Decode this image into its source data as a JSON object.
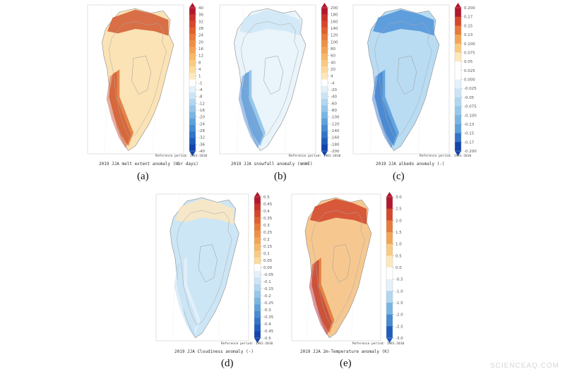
{
  "watermark": "SCIENCEAQ.COM",
  "reference_note": "Reference period: 1981-2010",
  "chart_data": [
    {
      "type": "heatmap",
      "panel_label": "(a)",
      "title": "2019 JJA melt extent anomaly (Nbr days)",
      "colorbar": {
        "ticks": [
          "40",
          "36",
          "32",
          "28",
          "24",
          "20",
          "16",
          "12",
          "8",
          "4",
          "1",
          "-1",
          "-4",
          "-8",
          "-12",
          "-16",
          "-20",
          "-24",
          "-28",
          "-32",
          "-36",
          "-40"
        ],
        "colors": [
          "#b2182b",
          "#c8322b",
          "#d6472c",
          "#e0602f",
          "#e87a3b",
          "#ee9047",
          "#f2a455",
          "#f6b86a",
          "#f9ca82",
          "#fbdb9e",
          "#fde8bd",
          "#ffffff",
          "#e4f1fa",
          "#cce5f5",
          "#b1d6ef",
          "#96c6e9",
          "#7ab5e2",
          "#5fa1da",
          "#478bd1",
          "#3374c7",
          "#205cbc",
          "#1244ae"
        ]
      },
      "map_fill": {
        "interior": "#fbe3b5",
        "coast": "#e07a3e",
        "coast_dark": "#c8442c",
        "northwest": "#d25a32"
      }
    },
    {
      "type": "heatmap",
      "panel_label": "(b)",
      "title": "2019 JJA snowfall anomaly (mmWE)",
      "colorbar": {
        "ticks": [
          "200",
          "180",
          "160",
          "140",
          "120",
          "100",
          "80",
          "60",
          "40",
          "20",
          "4",
          "-4",
          "-20",
          "-40",
          "-60",
          "-80",
          "-100",
          "-120",
          "-140",
          "-160",
          "-180",
          "-200"
        ],
        "colors": [
          "#b2182b",
          "#c8322b",
          "#d6472c",
          "#e0602f",
          "#e87a3b",
          "#ee9047",
          "#f2a455",
          "#f6b86a",
          "#f9ca82",
          "#fbdb9e",
          "#fde8bd",
          "#ffffff",
          "#e4f1fa",
          "#cce5f5",
          "#b1d6ef",
          "#96c6e9",
          "#7ab5e2",
          "#5fa1da",
          "#478bd1",
          "#3374c7",
          "#205cbc",
          "#1244ae"
        ]
      },
      "map_fill": {
        "interior": "#eaf4fb",
        "coast": "#8fc2e8",
        "coast_dark": "#3f7fcf",
        "northwest": "#cfe6f6"
      }
    },
    {
      "type": "heatmap",
      "panel_label": "(c)",
      "title": "2019 JJA albedo anomaly (-)",
      "colorbar": {
        "ticks": [
          "0.200",
          "0.17",
          "0.15",
          "0.13",
          "0.100",
          "0.075",
          "0.05",
          "0.025",
          "0.000",
          "-0.025",
          "-0.05",
          "-0.075",
          "-0.100",
          "-0.13",
          "-0.15",
          "-0.17",
          "-0.200"
        ],
        "colors": [
          "#b2182b",
          "#d6472c",
          "#e87a3b",
          "#f2a455",
          "#f9ca82",
          "#fde8bd",
          "#ffffff",
          "#ffffff",
          "#e4f1fa",
          "#cce5f5",
          "#b1d6ef",
          "#96c6e9",
          "#7ab5e2",
          "#5fa1da",
          "#3374c7",
          "#1244ae"
        ]
      },
      "map_fill": {
        "interior": "#b9dcf3",
        "coast": "#5b9ddb",
        "coast_dark": "#2f6cc6",
        "northwest": "#4f93d8"
      }
    },
    {
      "type": "heatmap",
      "panel_label": "(d)",
      "title": "2019 JJA Cloudiness anomaly (-)",
      "colorbar": {
        "ticks": [
          "0.5",
          "0.45",
          "0.4",
          "0.35",
          "0.3",
          "0.25",
          "0.2",
          "0.15",
          "0.1",
          "0.05",
          "0.00",
          "-0.05",
          "-0.1",
          "-0.15",
          "-0.2",
          "-0.25",
          "-0.3",
          "-0.35",
          "-0.4",
          "-0.45",
          "-0.5"
        ],
        "colors": [
          "#b2182b",
          "#c8322b",
          "#d6472c",
          "#e0602f",
          "#e87a3b",
          "#ee9047",
          "#f2a455",
          "#f6b86a",
          "#f9ca82",
          "#fbdb9e",
          "#ffffff",
          "#e4f1fa",
          "#cce5f5",
          "#b1d6ef",
          "#96c6e9",
          "#7ab5e2",
          "#5fa1da",
          "#478bd1",
          "#3374c7",
          "#205cbc",
          "#1244ae"
        ]
      },
      "map_fill": {
        "interior": "#cde6f6",
        "coast": "#e4f1fa",
        "coast_dark": "#b1d6ef",
        "northwest": "#fbe6c0"
      }
    },
    {
      "type": "heatmap",
      "panel_label": "(e)",
      "title": "2019 JJA 2m-Temperature anomaly (K)",
      "colorbar": {
        "ticks": [
          "3.0",
          "2.5",
          "2.0",
          "1.5",
          "1.0",
          "0.5",
          "0.0",
          "-0.5",
          "-1.0",
          "-1.5",
          "-2.0",
          "-2.5",
          "-3.0"
        ],
        "colors": [
          "#b2182b",
          "#d6472c",
          "#e87a3b",
          "#f2a455",
          "#f9ca82",
          "#fde8bd",
          "#ffffff",
          "#e4f1fa",
          "#b1d6ef",
          "#7ab5e2",
          "#478bd1",
          "#205cbc"
        ]
      },
      "map_fill": {
        "interior": "#f6c890",
        "coast": "#e07a3e",
        "coast_dark": "#b2182b",
        "northwest": "#d2442c"
      }
    }
  ]
}
